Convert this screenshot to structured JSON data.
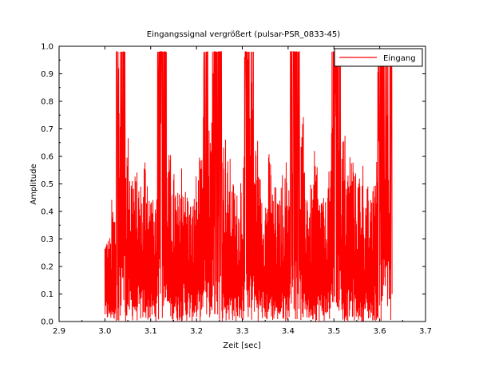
{
  "chart_data": {
    "type": "line",
    "title": "Eingangssignal vergrößert (pulsar-PSR_0833-45)",
    "xlabel": "Zeit [sec]",
    "ylabel": "Amplitude",
    "xlim": [
      2.9,
      3.7
    ],
    "ylim": [
      0.0,
      1.0
    ],
    "x_ticks": [
      "2.9",
      "3.0",
      "3.1",
      "3.2",
      "3.3",
      "3.4",
      "3.5",
      "3.6",
      "3.7"
    ],
    "y_ticks": [
      "0.0",
      "0.1",
      "0.2",
      "0.3",
      "0.4",
      "0.5",
      "0.6",
      "0.7",
      "0.8",
      "0.9",
      "1.0"
    ],
    "grid": false,
    "legend_position": "top-right",
    "series": [
      {
        "name": "Eingang",
        "color": "#ff0000",
        "x_range": [
          3.0,
          3.627
        ],
        "description_points": [
          [
            3.0,
            0.34
          ],
          [
            3.005,
            0.05
          ],
          [
            3.01,
            0.32
          ],
          [
            3.015,
            0.1
          ],
          [
            3.02,
            0.45
          ],
          [
            3.025,
            0.2
          ],
          [
            3.03,
            0.98
          ],
          [
            3.035,
            0.3
          ],
          [
            3.04,
            0.98
          ],
          [
            3.045,
            0.25
          ],
          [
            3.05,
            0.7
          ],
          [
            3.055,
            0.12
          ],
          [
            3.06,
            0.6
          ],
          [
            3.065,
            0.2
          ],
          [
            3.07,
            0.55
          ],
          [
            3.075,
            0.1
          ],
          [
            3.08,
            0.52
          ],
          [
            3.085,
            0.2
          ],
          [
            3.09,
            0.65
          ],
          [
            3.095,
            0.18
          ],
          [
            3.1,
            0.5
          ],
          [
            3.105,
            0.12
          ],
          [
            3.11,
            0.45
          ],
          [
            3.115,
            0.2
          ],
          [
            3.12,
            0.98
          ],
          [
            3.125,
            0.25
          ],
          [
            3.13,
            0.98
          ],
          [
            3.135,
            0.2
          ],
          [
            3.14,
            0.62
          ],
          [
            3.145,
            0.1
          ],
          [
            3.15,
            0.55
          ],
          [
            3.155,
            0.15
          ],
          [
            3.16,
            0.48
          ],
          [
            3.165,
            0.1
          ],
          [
            3.17,
            0.62
          ],
          [
            3.175,
            0.2
          ],
          [
            3.18,
            0.5
          ],
          [
            3.185,
            0.12
          ],
          [
            3.19,
            0.45
          ],
          [
            3.195,
            0.18
          ],
          [
            3.2,
            0.55
          ],
          [
            3.205,
            0.1
          ],
          [
            3.21,
            0.6
          ],
          [
            3.215,
            0.2
          ],
          [
            3.22,
            0.98
          ],
          [
            3.225,
            0.3
          ],
          [
            3.23,
            0.75
          ],
          [
            3.235,
            0.2
          ],
          [
            3.24,
            0.98
          ],
          [
            3.245,
            0.25
          ],
          [
            3.25,
            0.98
          ],
          [
            3.255,
            0.2
          ],
          [
            3.26,
            0.7
          ],
          [
            3.265,
            0.12
          ],
          [
            3.27,
            0.6
          ],
          [
            3.275,
            0.18
          ],
          [
            3.28,
            0.52
          ],
          [
            3.285,
            0.1
          ],
          [
            3.29,
            0.48
          ],
          [
            3.295,
            0.2
          ],
          [
            3.3,
            0.6
          ],
          [
            3.305,
            0.15
          ],
          [
            3.31,
            0.98
          ],
          [
            3.315,
            0.25
          ],
          [
            3.32,
            0.98
          ],
          [
            3.325,
            0.2
          ],
          [
            3.33,
            0.7
          ],
          [
            3.335,
            0.12
          ],
          [
            3.34,
            0.55
          ],
          [
            3.345,
            0.1
          ],
          [
            3.35,
            0.5
          ],
          [
            3.355,
            0.18
          ],
          [
            3.36,
            0.62
          ],
          [
            3.365,
            0.12
          ],
          [
            3.37,
            0.5
          ],
          [
            3.375,
            0.2
          ],
          [
            3.38,
            0.45
          ],
          [
            3.385,
            0.1
          ],
          [
            3.39,
            0.55
          ],
          [
            3.395,
            0.2
          ],
          [
            3.4,
            0.6
          ],
          [
            3.405,
            0.25
          ],
          [
            3.41,
            0.98
          ],
          [
            3.415,
            0.3
          ],
          [
            3.42,
            0.98
          ],
          [
            3.425,
            0.2
          ],
          [
            3.43,
            0.75
          ],
          [
            3.435,
            0.15
          ],
          [
            3.44,
            0.55
          ],
          [
            3.445,
            0.1
          ],
          [
            3.45,
            0.5
          ],
          [
            3.455,
            0.15
          ],
          [
            3.46,
            0.62
          ],
          [
            3.465,
            0.12
          ],
          [
            3.47,
            0.5
          ],
          [
            3.475,
            0.1
          ],
          [
            3.48,
            0.45
          ],
          [
            3.485,
            0.2
          ],
          [
            3.49,
            0.55
          ],
          [
            3.495,
            0.2
          ],
          [
            3.5,
            0.98
          ],
          [
            3.505,
            0.25
          ],
          [
            3.51,
            0.98
          ],
          [
            3.515,
            0.3
          ],
          [
            3.52,
            0.7
          ],
          [
            3.525,
            0.15
          ],
          [
            3.53,
            0.6
          ],
          [
            3.535,
            0.12
          ],
          [
            3.54,
            0.65
          ],
          [
            3.545,
            0.1
          ],
          [
            3.55,
            0.55
          ],
          [
            3.555,
            0.15
          ],
          [
            3.56,
            0.6
          ],
          [
            3.565,
            0.12
          ],
          [
            3.57,
            0.5
          ],
          [
            3.575,
            0.15
          ],
          [
            3.58,
            0.45
          ],
          [
            3.585,
            0.2
          ],
          [
            3.59,
            0.6
          ],
          [
            3.595,
            0.2
          ],
          [
            3.6,
            0.98
          ],
          [
            3.605,
            0.3
          ],
          [
            3.61,
            0.98
          ],
          [
            3.615,
            0.25
          ],
          [
            3.62,
            0.98
          ],
          [
            3.627,
            0.1
          ]
        ]
      }
    ]
  }
}
